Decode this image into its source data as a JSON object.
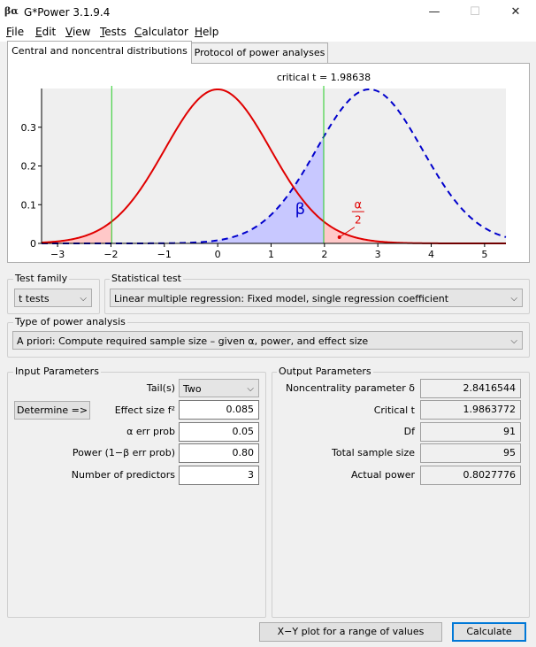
{
  "window": {
    "title": "G*Power 3.1.9.4",
    "icon_text": "βα",
    "minimize": "—",
    "maximize": "☐",
    "close": "✕"
  },
  "menu": [
    {
      "key": "F",
      "rest": "ile"
    },
    {
      "key": "E",
      "rest": "dit"
    },
    {
      "key": "V",
      "rest": "iew"
    },
    {
      "key": "T",
      "rest": "ests"
    },
    {
      "key": "C",
      "rest": "alculator"
    },
    {
      "key": "H",
      "rest": "elp"
    }
  ],
  "tabs": [
    "Central and noncentral distributions",
    "Protocol of power analyses"
  ],
  "chart_data": {
    "type": "line",
    "title": "critical t = 1.98638",
    "critical_t": 1.98638,
    "noncentrality": 2.8416544,
    "df": 91,
    "xlim": [
      -3.3,
      5.4
    ],
    "ylim": [
      0,
      0.4
    ],
    "x_ticks": [
      "−3",
      "−2",
      "−1",
      "0",
      "1",
      "2",
      "3",
      "4",
      "5"
    ],
    "y_ticks": [
      "0",
      "0.1",
      "0.2",
      "0.3"
    ],
    "series": [
      {
        "role": "central",
        "color": "#e00000",
        "style": "solid"
      },
      {
        "role": "noncentral",
        "color": "#0000cc",
        "style": "dashed"
      }
    ],
    "critical_lines": [
      -1.98638,
      1.98638
    ],
    "critical_color": "#22cc22",
    "beta_label": "β",
    "alpha_label": "α",
    "alpha_denominator": "2"
  },
  "test_family": {
    "label": "Test family",
    "value": "t tests"
  },
  "statistical_test": {
    "label": "Statistical test",
    "value": "Linear multiple regression: Fixed model, single regression coefficient"
  },
  "power_analysis": {
    "label": "Type of power analysis",
    "value": "A priori: Compute required sample size – given α, power, and effect size"
  },
  "input": {
    "label": "Input Parameters",
    "determine": "Determine =>",
    "tails_label": "Tail(s)",
    "tails_value": "Two",
    "effect_label": "Effect size f²",
    "effect_value": "0.085",
    "alpha_label": "α err prob",
    "alpha_value": "0.05",
    "power_label": "Power (1−β err prob)",
    "power_value": "0.80",
    "predictors_label": "Number of predictors",
    "predictors_value": "3"
  },
  "output": {
    "label": "Output Parameters",
    "rows": [
      {
        "label": "Noncentrality parameter δ",
        "value": "2.8416544"
      },
      {
        "label": "Critical t",
        "value": "1.9863772"
      },
      {
        "label": "Df",
        "value": "91"
      },
      {
        "label": "Total sample size",
        "value": "95"
      },
      {
        "label": "Actual power",
        "value": "0.8027776"
      }
    ]
  },
  "buttons": {
    "xy_plot": "X−Y plot for a range of values",
    "calculate": "Calculate"
  }
}
